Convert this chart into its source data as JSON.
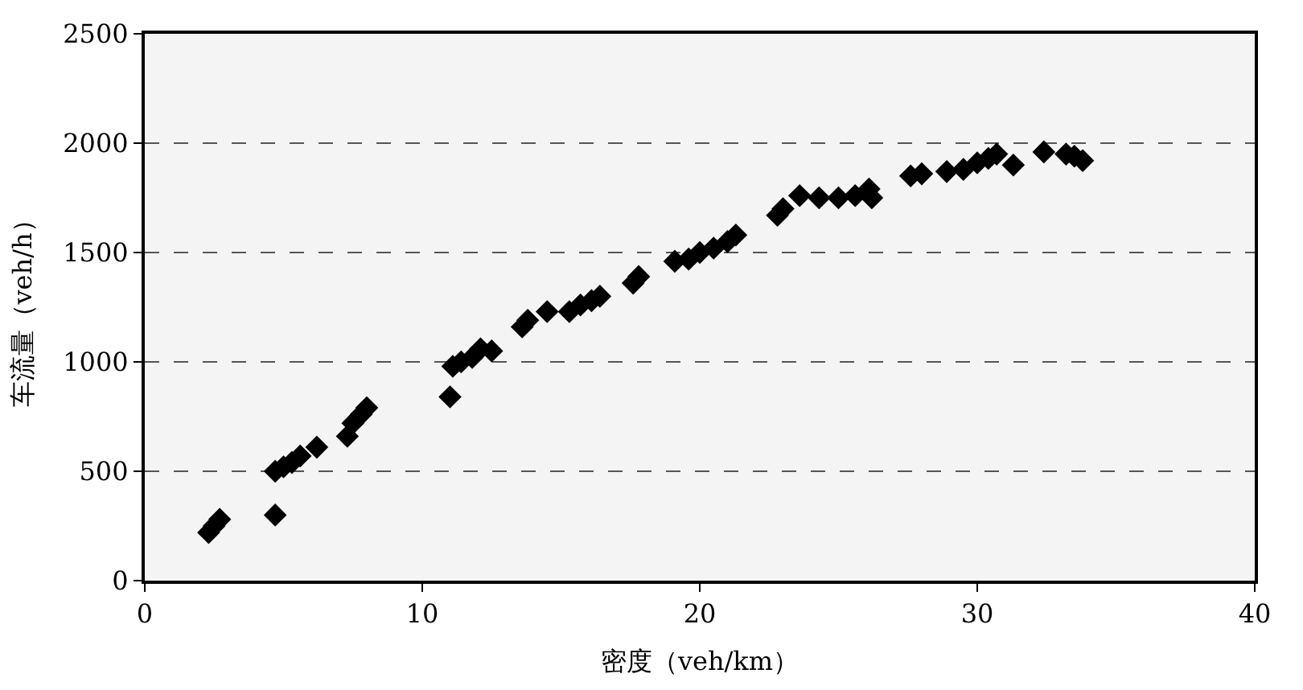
{
  "chart_data": {
    "type": "scatter",
    "xlabel": "密度（veh/km）",
    "ylabel": "车流量（veh/h）",
    "x": [
      2.3,
      2.5,
      2.7,
      4.7,
      4.7,
      5.0,
      5.3,
      5.6,
      6.2,
      7.3,
      7.5,
      7.8,
      8.0,
      11.0,
      11.1,
      11.4,
      11.8,
      12.1,
      12.5,
      13.6,
      13.8,
      14.5,
      15.3,
      15.7,
      16.1,
      16.4,
      17.6,
      17.8,
      19.1,
      19.6,
      20.0,
      20.5,
      21.0,
      21.3,
      22.8,
      23.0,
      23.6,
      24.3,
      25.0,
      25.6,
      26.1,
      26.2,
      27.6,
      28.0,
      28.9,
      29.5,
      30.0,
      30.4,
      30.7,
      31.3,
      32.4,
      33.2,
      33.5,
      33.8
    ],
    "series": [
      {
        "color": "#000000",
        "values": [
          220,
          250,
          280,
          300,
          500,
          520,
          540,
          570,
          610,
          660,
          720,
          760,
          790,
          840,
          980,
          1000,
          1020,
          1060,
          1050,
          1160,
          1190,
          1230,
          1230,
          1260,
          1280,
          1300,
          1360,
          1390,
          1460,
          1470,
          1500,
          1520,
          1550,
          1580,
          1670,
          1700,
          1760,
          1750,
          1750,
          1760,
          1790,
          1750,
          1850,
          1860,
          1870,
          1880,
          1910,
          1930,
          1950,
          1900,
          1960,
          1950,
          1940,
          1920
        ]
      }
    ],
    "xlim": [
      0,
      40
    ],
    "xticks": [
      0,
      10,
      20,
      30,
      40
    ],
    "ylim": [
      0,
      2500
    ],
    "yticks": [
      0,
      500,
      1000,
      1500,
      2000,
      2500
    ],
    "grid": "y",
    "marker": "diamond"
  }
}
